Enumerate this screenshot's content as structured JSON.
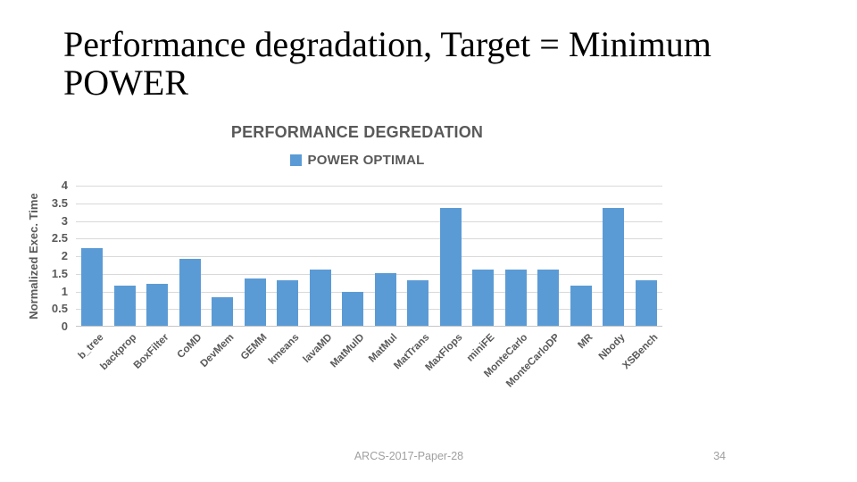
{
  "slide": {
    "title": "Performance degradation, Target = Minimum POWER",
    "footer": "ARCS-2017-Paper-28",
    "page_number": "34"
  },
  "chart_data": {
    "type": "bar",
    "title": "PERFORMANCE DEGREDATION",
    "legend": {
      "label": "POWER OPTIMAL",
      "position": "top"
    },
    "ylabel": "Normalized Exec. Time",
    "xlabel": "",
    "ylim": [
      0,
      4
    ],
    "y_ticks": [
      "0",
      "0.5",
      "1",
      "1.5",
      "2",
      "2.5",
      "3",
      "3.5",
      "4"
    ],
    "grid": true,
    "categories": [
      "b_tree",
      "backprop",
      "BoxFilter",
      "CoMD",
      "DevMem",
      "GEMM",
      "kmeans",
      "lavaMD",
      "MatMulD",
      "MatMul",
      "MatTrans",
      "MaxFlops",
      "miniFE",
      "MonteCarlo",
      "MonteCarloDP",
      "MR",
      "Nbody",
      "XSBench"
    ],
    "series": [
      {
        "name": "POWER OPTIMAL",
        "color": "#5B9BD5",
        "values": [
          2.2,
          1.15,
          1.2,
          1.9,
          0.8,
          1.35,
          1.3,
          1.6,
          0.95,
          1.5,
          1.3,
          3.35,
          1.6,
          1.6,
          1.6,
          1.15,
          3.35,
          1.3
        ]
      }
    ]
  },
  "colors": {
    "bar": "#5B9BD5",
    "gridline": "#D9D9D9",
    "axis_text": "#595959",
    "footer_text": "#A0A0A0"
  }
}
